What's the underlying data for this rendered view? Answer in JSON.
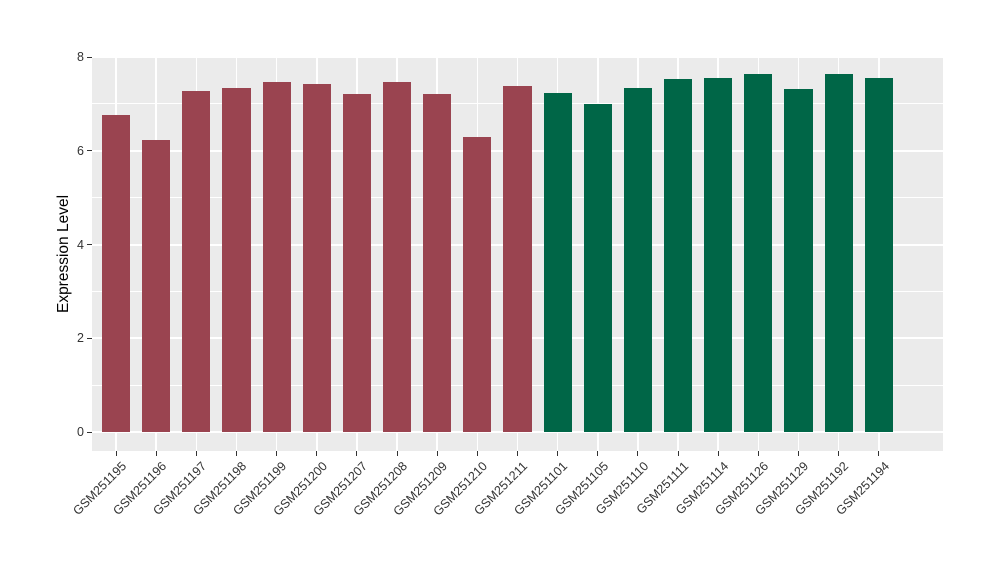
{
  "chart_data": {
    "type": "bar",
    "title": "",
    "xlabel": "",
    "ylabel": "Expression Level",
    "ylim": [
      0,
      8
    ],
    "yticks_major": [
      0,
      2,
      4,
      6,
      8
    ],
    "yticks_minor": [
      1,
      3,
      5,
      7
    ],
    "grid": "on",
    "legend": "none",
    "categories": [
      "GSM251195",
      "GSM251196",
      "GSM251197",
      "GSM251198",
      "GSM251199",
      "GSM251200",
      "GSM251207",
      "GSM251208",
      "GSM251209",
      "GSM251210",
      "GSM251211",
      "GSM251101",
      "GSM251105",
      "GSM251110",
      "GSM251111",
      "GSM251114",
      "GSM251126",
      "GSM251129",
      "GSM251192",
      "GSM251194"
    ],
    "values": [
      6.77,
      6.23,
      7.28,
      7.34,
      7.47,
      7.43,
      7.21,
      7.46,
      7.21,
      6.3,
      7.38,
      7.23,
      7.0,
      7.34,
      7.53,
      7.55,
      7.63,
      7.32,
      7.63,
      7.55
    ],
    "bar_groups": [
      0,
      0,
      0,
      0,
      0,
      0,
      0,
      0,
      0,
      0,
      0,
      1,
      1,
      1,
      1,
      1,
      1,
      1,
      1,
      1
    ],
    "group_colors": [
      "#9A4450",
      "#006647"
    ],
    "colors": {
      "panel_background": "#EBEBEB",
      "figure_background": "#FFFFFF",
      "gridline": "#FFFFFF",
      "tick_mark": "#333333",
      "tick_text": "#333333",
      "axis_title_text": "#000000"
    }
  }
}
